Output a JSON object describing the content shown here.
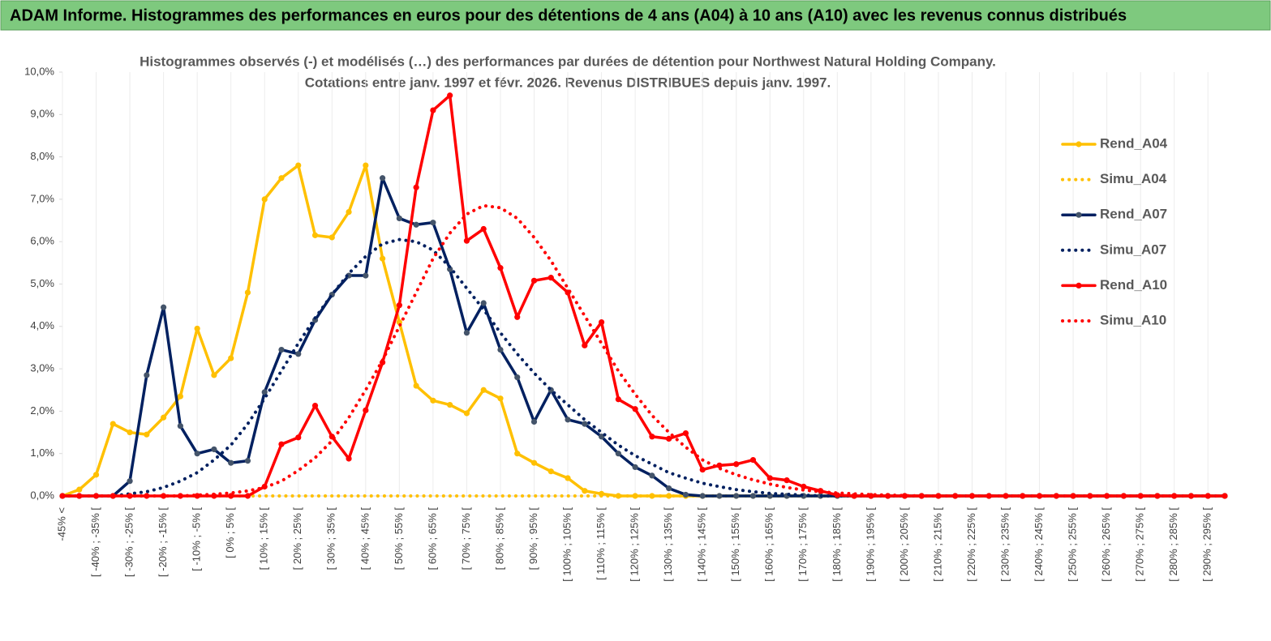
{
  "header": {
    "title": "ADAM Informe. Histogrammes des performances en euros pour des détentions de 4 ans (A04) à 10 ans (A10) avec les revenus connus distribués"
  },
  "chart_data": {
    "type": "line",
    "title": [
      "Histogrammes observés (-) et modélisés (…) des performances par durées de détention pour Northwest Natural Holding Company.",
      "Cotations entre janv. 1997 et févr. 2026. Revenus DISTRIBUES depuis janv. 1997."
    ],
    "categories": [
      "-45% <",
      null,
      "[ -40% ; -35% [",
      null,
      "[ -30% ; -25% [",
      null,
      "[ -20% ; -15% [",
      null,
      "[ -10% ; -5% [",
      null,
      "[ 0% ; 5% [",
      null,
      "[ 10% ; 15% [",
      null,
      "[ 20% ; 25% [",
      null,
      "[ 30% ; 35% [",
      null,
      "[ 40% ; 45% [",
      null,
      "[ 50% ; 55% [",
      null,
      "[ 60% ; 65% [",
      null,
      "[ 70% ; 75% [",
      null,
      "[ 80% ; 85% [",
      null,
      "[ 90% ; 95% [",
      null,
      "[ 100% ; 105% [",
      null,
      "[ 110% ; 115% [",
      null,
      "[ 120% ; 125% [",
      null,
      "[ 130% ; 135% [",
      null,
      "[ 140% ; 145% [",
      null,
      "[ 150% ; 155% [",
      null,
      "[ 160% ; 165% [",
      null,
      "[ 170% ; 175% [",
      null,
      "[ 180% ; 185% [",
      null,
      "[ 190% ; 195% [",
      null,
      "[ 200% ; 205% [",
      null,
      "[ 210% ; 215% [",
      null,
      "[ 220% ; 225% [",
      null,
      "[ 230% ; 235% [",
      null,
      "[ 240% ; 245% [",
      null,
      "[ 250% ; 255% [",
      null,
      "[ 260% ; 265% [",
      null,
      "[ 270% ; 275% [",
      null,
      "[ 280% ; 285% [",
      null,
      "[ 290% ; 295% [",
      null
    ],
    "series": [
      {
        "name": "Rend_A04",
        "color": "#ffc000",
        "style": "solid",
        "marker_color": "#ffc000",
        "values": [
          0,
          0.15,
          0.5,
          1.7,
          1.5,
          1.45,
          1.85,
          2.35,
          3.95,
          2.85,
          3.25,
          4.8,
          7.0,
          7.5,
          7.8,
          6.15,
          6.1,
          6.7,
          7.8,
          5.6,
          4.1,
          2.6,
          2.25,
          2.15,
          1.95,
          2.5,
          2.3,
          1.0,
          0.78,
          0.58,
          0.42,
          0.12,
          0.05,
          0,
          0,
          0,
          0,
          0,
          0,
          0,
          0,
          0,
          0,
          0,
          0,
          0,
          0,
          0,
          0,
          0,
          0,
          0,
          0,
          0,
          0,
          0,
          0,
          0,
          0,
          0,
          0,
          0,
          0,
          0,
          0,
          0,
          0,
          0,
          0,
          0
        ]
      },
      {
        "name": "Simu_A04",
        "color": "#ffc000",
        "style": "dotted",
        "values": [
          0,
          0,
          0,
          0,
          0,
          0,
          0,
          0,
          0,
          0,
          0,
          0,
          0,
          0,
          0,
          0,
          0,
          0,
          0,
          0,
          0,
          0,
          0,
          0,
          0,
          0,
          0,
          0,
          0,
          0,
          0,
          0,
          0,
          0,
          0,
          0,
          0,
          0,
          0,
          0,
          0,
          0,
          0,
          0,
          0,
          0,
          0,
          0,
          0,
          0,
          0,
          0,
          0,
          0,
          0,
          0,
          0,
          0,
          0,
          0,
          0,
          0,
          0,
          0,
          0,
          0,
          0,
          0,
          0,
          0
        ]
      },
      {
        "name": "Rend_A07",
        "color": "#002060",
        "style": "solid",
        "marker_color": "#44546a",
        "values": [
          0,
          0,
          0,
          0,
          0.35,
          2.85,
          4.45,
          1.65,
          1.0,
          1.1,
          0.78,
          0.83,
          2.45,
          3.45,
          3.35,
          4.15,
          4.75,
          5.2,
          5.2,
          7.5,
          6.55,
          6.4,
          6.45,
          5.35,
          3.85,
          4.55,
          3.45,
          2.8,
          1.75,
          2.5,
          1.8,
          1.7,
          1.4,
          1.0,
          0.68,
          0.48,
          0.18,
          0.03,
          0,
          0,
          0,
          0,
          0,
          0,
          0,
          0,
          0,
          0,
          0,
          0,
          0,
          0,
          0,
          0,
          0,
          0,
          0,
          0,
          0,
          0,
          0,
          0,
          0,
          0,
          0,
          0,
          0,
          0,
          0,
          0
        ]
      },
      {
        "name": "Simu_A07",
        "color": "#002060",
        "style": "dotted",
        "values": [
          0,
          0,
          0,
          0,
          0.05,
          0.1,
          0.2,
          0.35,
          0.55,
          0.85,
          1.2,
          1.7,
          2.3,
          2.95,
          3.6,
          4.2,
          4.75,
          5.25,
          5.65,
          5.95,
          6.05,
          6.0,
          5.8,
          5.4,
          4.9,
          4.4,
          3.85,
          3.35,
          2.9,
          2.5,
          2.15,
          1.8,
          1.5,
          1.2,
          0.95,
          0.75,
          0.55,
          0.42,
          0.3,
          0.22,
          0.15,
          0.1,
          0.06,
          0.04,
          0.02,
          0,
          0,
          0,
          0,
          0,
          0,
          0,
          0,
          0,
          0,
          0,
          0,
          0,
          0,
          0,
          0,
          0,
          0,
          0,
          0,
          0,
          0,
          0,
          0,
          0
        ]
      },
      {
        "name": "Rend_A10",
        "color": "#ff0000",
        "style": "solid",
        "marker_color": "#ff0000",
        "values": [
          0,
          0,
          0,
          0,
          0,
          0,
          0,
          0,
          0,
          0,
          0,
          0,
          0.22,
          1.22,
          1.38,
          2.13,
          1.4,
          0.88,
          2.02,
          3.15,
          4.5,
          7.28,
          9.1,
          9.45,
          6.02,
          6.3,
          5.38,
          4.22,
          5.08,
          5.15,
          4.8,
          3.55,
          4.1,
          2.28,
          2.05,
          1.4,
          1.35,
          1.48,
          0.62,
          0.72,
          0.75,
          0.85,
          0.42,
          0.37,
          0.22,
          0.12,
          0.02,
          0,
          0,
          0,
          0,
          0,
          0,
          0,
          0,
          0,
          0,
          0,
          0,
          0,
          0,
          0,
          0,
          0,
          0,
          0,
          0,
          0,
          0,
          0
        ]
      },
      {
        "name": "Simu_A10",
        "color": "#ff0000",
        "style": "dotted",
        "values": [
          0,
          0,
          0,
          0,
          0,
          0,
          0,
          0,
          0.02,
          0.04,
          0.07,
          0.12,
          0.2,
          0.35,
          0.6,
          0.9,
          1.3,
          1.85,
          2.5,
          3.2,
          4.0,
          4.8,
          5.6,
          6.2,
          6.65,
          6.85,
          6.8,
          6.55,
          6.1,
          5.55,
          4.9,
          4.25,
          3.6,
          2.95,
          2.4,
          1.9,
          1.5,
          1.15,
          0.85,
          0.65,
          0.5,
          0.38,
          0.28,
          0.2,
          0.14,
          0.1,
          0.07,
          0.05,
          0.03,
          0.02,
          0.01,
          0,
          0,
          0,
          0,
          0,
          0,
          0,
          0,
          0,
          0,
          0,
          0,
          0,
          0,
          0,
          0,
          0,
          0,
          0
        ]
      }
    ],
    "ylim": [
      0,
      10
    ],
    "yticks": [
      {
        "value": 0,
        "label": "0,0%"
      },
      {
        "value": 1,
        "label": "1,0%"
      },
      {
        "value": 2,
        "label": "2,0%"
      },
      {
        "value": 3,
        "label": "3,0%"
      },
      {
        "value": 4,
        "label": "4,0%"
      },
      {
        "value": 5,
        "label": "5,0%"
      },
      {
        "value": 6,
        "label": "6,0%"
      },
      {
        "value": 7,
        "label": "7,0%"
      },
      {
        "value": 8,
        "label": "8,0%"
      },
      {
        "value": 9,
        "label": "9,0%"
      },
      {
        "value": 10,
        "label": "10,0%"
      }
    ],
    "legend": "right"
  }
}
